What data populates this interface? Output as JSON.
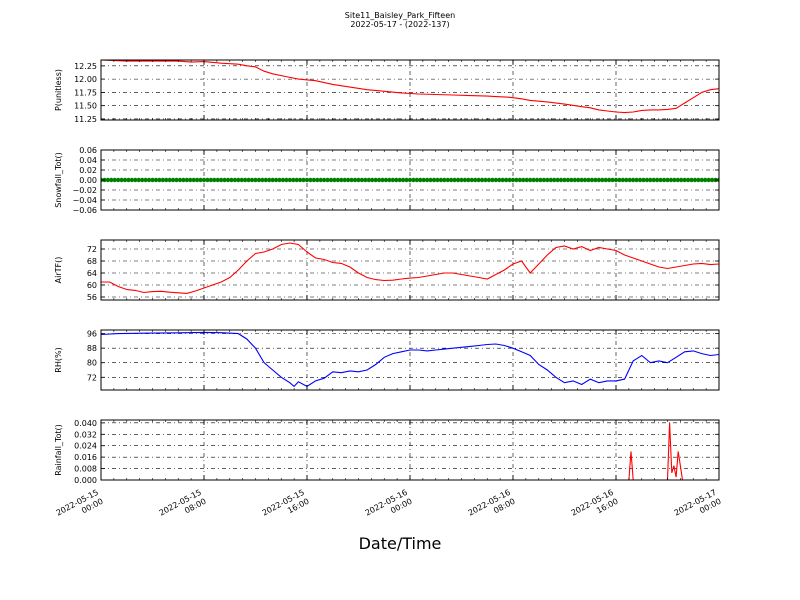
{
  "chart_data": {
    "type": "line",
    "title": "Site11_Baisley_Park_Fifteen",
    "subtitle": "2022-05-17 - (2022-137)",
    "xlabel": "Date/Time",
    "x_range": [
      "2022-05-15 00:00",
      "2022-05-17 00:00"
    ],
    "x_ticks": [
      {
        "l1": "2022-05-15",
        "l2": "00:00"
      },
      {
        "l1": "2022-05-15",
        "l2": "08:00"
      },
      {
        "l1": "2022-05-15",
        "l2": "16:00"
      },
      {
        "l1": "2022-05-16",
        "l2": "00:00"
      },
      {
        "l1": "2022-05-16",
        "l2": "08:00"
      },
      {
        "l1": "2022-05-16",
        "l2": "16:00"
      },
      {
        "l1": "2022-05-17",
        "l2": "00:00"
      }
    ],
    "grid": true,
    "panels": [
      {
        "ylabel": "P(unitless)",
        "ylim": [
          11.23,
          12.36
        ],
        "yticks": [
          11.25,
          11.5,
          11.75,
          12.0,
          12.25
        ],
        "ytick_labels": [
          "11.25",
          "11.50",
          "11.75",
          "12.00",
          "12.25"
        ],
        "color": "#ff0000",
        "style": "line",
        "points": [
          [
            0,
            12.36
          ],
          [
            3,
            12.34
          ],
          [
            6,
            12.34
          ],
          [
            9,
            12.34
          ],
          [
            10.5,
            12.32
          ],
          [
            12,
            12.33
          ],
          [
            14,
            12.3
          ],
          [
            16,
            12.28
          ],
          [
            17,
            12.25
          ],
          [
            18,
            12.23
          ],
          [
            19,
            12.15
          ],
          [
            20,
            12.1
          ],
          [
            21.5,
            12.05
          ],
          [
            23,
            12.0
          ],
          [
            25,
            11.97
          ],
          [
            27,
            11.9
          ],
          [
            29,
            11.85
          ],
          [
            31,
            11.8
          ],
          [
            33,
            11.77
          ],
          [
            35,
            11.74
          ],
          [
            37,
            11.72
          ],
          [
            39,
            11.71
          ],
          [
            41,
            11.7
          ],
          [
            43,
            11.69
          ],
          [
            45,
            11.68
          ],
          [
            46,
            11.67
          ],
          [
            47.5,
            11.66
          ],
          [
            49,
            11.63
          ],
          [
            50,
            11.6
          ],
          [
            52,
            11.57
          ],
          [
            54,
            11.53
          ],
          [
            56,
            11.48
          ],
          [
            57,
            11.46
          ],
          [
            58,
            11.42
          ],
          [
            59,
            11.4
          ],
          [
            60,
            11.38
          ],
          [
            61,
            11.37
          ],
          [
            62,
            11.38
          ],
          [
            63,
            11.41
          ],
          [
            64,
            11.42
          ],
          [
            65,
            11.42
          ],
          [
            66,
            11.43
          ],
          [
            67,
            11.45
          ],
          [
            68,
            11.55
          ],
          [
            69,
            11.65
          ],
          [
            70,
            11.75
          ],
          [
            71,
            11.8
          ],
          [
            72,
            11.82
          ],
          [
            72.5,
            11.83
          ]
        ]
      },
      {
        "ylabel": "Snowfall_Tot()",
        "ylim": [
          -0.06,
          0.06
        ],
        "yticks": [
          -0.06,
          -0.04,
          -0.02,
          0.0,
          0.02,
          0.04,
          0.06
        ],
        "ytick_labels": [
          "−0.06",
          "−0.04",
          "−0.02",
          "0.00",
          "0.02",
          "0.04",
          "0.06"
        ],
        "color": "#008000",
        "style": "dots",
        "points": [
          [
            0,
            0
          ],
          [
            72,
            0
          ]
        ]
      },
      {
        "ylabel": "AirTF()",
        "ylim": [
          55,
          75
        ],
        "yticks": [
          56,
          60,
          64,
          68,
          72
        ],
        "ytick_labels": [
          "56",
          "60",
          "64",
          "68",
          "72"
        ],
        "color": "#ff0000",
        "style": "line",
        "points": [
          [
            0,
            61
          ],
          [
            1,
            61
          ],
          [
            2,
            59.5
          ],
          [
            3,
            58.5
          ],
          [
            4,
            58.2
          ],
          [
            5,
            57.5
          ],
          [
            6,
            57.8
          ],
          [
            7,
            57.9
          ],
          [
            8,
            57.6
          ],
          [
            9,
            57.4
          ],
          [
            10,
            57.2
          ],
          [
            11,
            58
          ],
          [
            12,
            59
          ],
          [
            13,
            60
          ],
          [
            14,
            61
          ],
          [
            15,
            62.5
          ],
          [
            16,
            65
          ],
          [
            17,
            68
          ],
          [
            18,
            70.5
          ],
          [
            19,
            71
          ],
          [
            20,
            72
          ],
          [
            21,
            73.5
          ],
          [
            22,
            74
          ],
          [
            23,
            73.5
          ],
          [
            24,
            71
          ],
          [
            25,
            69
          ],
          [
            26,
            68.5
          ],
          [
            27,
            67.5
          ],
          [
            28,
            67.2
          ],
          [
            29,
            66
          ],
          [
            30,
            64
          ],
          [
            31,
            62.5
          ],
          [
            32,
            61.8
          ],
          [
            33,
            61.5
          ],
          [
            34,
            61.6
          ],
          [
            35,
            62
          ],
          [
            36,
            62.3
          ],
          [
            37,
            62.5
          ],
          [
            38,
            63
          ],
          [
            39,
            63.5
          ],
          [
            40,
            64
          ],
          [
            41,
            64
          ],
          [
            42,
            63.5
          ],
          [
            43,
            63
          ],
          [
            44,
            62.5
          ],
          [
            45,
            62
          ],
          [
            46,
            63.5
          ],
          [
            47,
            65
          ],
          [
            48,
            67
          ],
          [
            49,
            68
          ],
          [
            50,
            64
          ],
          [
            51,
            67
          ],
          [
            52,
            70
          ],
          [
            53,
            72.5
          ],
          [
            54,
            73
          ],
          [
            55,
            72
          ],
          [
            56,
            72.8
          ],
          [
            57,
            71.5
          ],
          [
            58,
            72.5
          ],
          [
            59,
            72
          ],
          [
            60,
            71.5
          ],
          [
            61,
            70
          ],
          [
            62,
            69
          ],
          [
            63,
            68
          ],
          [
            64,
            67
          ],
          [
            65,
            66
          ],
          [
            66,
            65.5
          ],
          [
            67,
            66
          ],
          [
            68,
            66.5
          ],
          [
            69,
            67
          ],
          [
            70,
            67.2
          ],
          [
            71,
            66.8
          ],
          [
            72,
            67
          ]
        ]
      },
      {
        "ylabel": "RH(%)",
        "ylim": [
          65,
          98
        ],
        "yticks": [
          72,
          80,
          88,
          96
        ],
        "ytick_labels": [
          "72",
          "80",
          "88",
          "96"
        ],
        "color": "#0000ff",
        "style": "line",
        "points": [
          [
            0,
            95.5
          ],
          [
            2,
            96
          ],
          [
            4,
            96.2
          ],
          [
            6,
            96.3
          ],
          [
            8,
            96.4
          ],
          [
            10,
            96.5
          ],
          [
            12,
            96.7
          ],
          [
            14,
            96.5
          ],
          [
            16,
            96
          ],
          [
            17,
            93
          ],
          [
            18,
            88
          ],
          [
            19,
            80
          ],
          [
            20,
            76
          ],
          [
            21,
            72
          ],
          [
            22,
            69
          ],
          [
            22.5,
            67
          ],
          [
            23,
            69.5
          ],
          [
            24,
            67
          ],
          [
            25,
            70
          ],
          [
            26,
            71.5
          ],
          [
            27,
            75
          ],
          [
            28,
            74.5
          ],
          [
            29,
            75.5
          ],
          [
            30,
            75
          ],
          [
            31,
            76
          ],
          [
            32,
            79
          ],
          [
            33,
            83
          ],
          [
            34,
            85
          ],
          [
            35,
            86
          ],
          [
            36,
            87
          ],
          [
            37,
            87
          ],
          [
            38,
            86.5
          ],
          [
            39,
            87
          ],
          [
            40,
            87.5
          ],
          [
            41,
            88
          ],
          [
            42,
            88.5
          ],
          [
            43,
            89
          ],
          [
            44,
            89.5
          ],
          [
            45,
            90
          ],
          [
            46,
            90.3
          ],
          [
            47,
            89.5
          ],
          [
            48,
            88
          ],
          [
            49,
            86
          ],
          [
            50,
            84
          ],
          [
            51,
            79
          ],
          [
            52,
            76
          ],
          [
            53,
            72
          ],
          [
            54,
            69
          ],
          [
            55,
            70
          ],
          [
            56,
            68
          ],
          [
            57,
            71
          ],
          [
            58,
            69
          ],
          [
            59,
            70
          ],
          [
            60,
            70
          ],
          [
            61,
            71
          ],
          [
            62,
            81
          ],
          [
            63,
            84
          ],
          [
            64,
            80
          ],
          [
            65,
            81
          ],
          [
            66,
            80
          ],
          [
            67,
            83
          ],
          [
            68,
            86
          ],
          [
            69,
            86.5
          ],
          [
            70,
            85
          ],
          [
            71,
            84
          ],
          [
            72,
            84.5
          ]
        ]
      },
      {
        "ylabel": "Rainfall_Tot()",
        "ylim": [
          0,
          0.042
        ],
        "yticks": [
          0.0,
          0.008,
          0.016,
          0.024,
          0.032,
          0.04
        ],
        "ytick_labels": [
          "0.000",
          "0.008",
          "0.016",
          "0.024",
          "0.032",
          "0.040"
        ],
        "color": "#ff0000",
        "style": "line",
        "points": [
          [
            0,
            0
          ],
          [
            61.5,
            0
          ],
          [
            61.75,
            0.02
          ],
          [
            62,
            0
          ],
          [
            66,
            0
          ],
          [
            66.25,
            0.04
          ],
          [
            66.5,
            0.005
          ],
          [
            66.75,
            0.01
          ],
          [
            67,
            0.002
          ],
          [
            67.25,
            0.02
          ],
          [
            67.75,
            0
          ],
          [
            72,
            0
          ]
        ]
      }
    ]
  }
}
